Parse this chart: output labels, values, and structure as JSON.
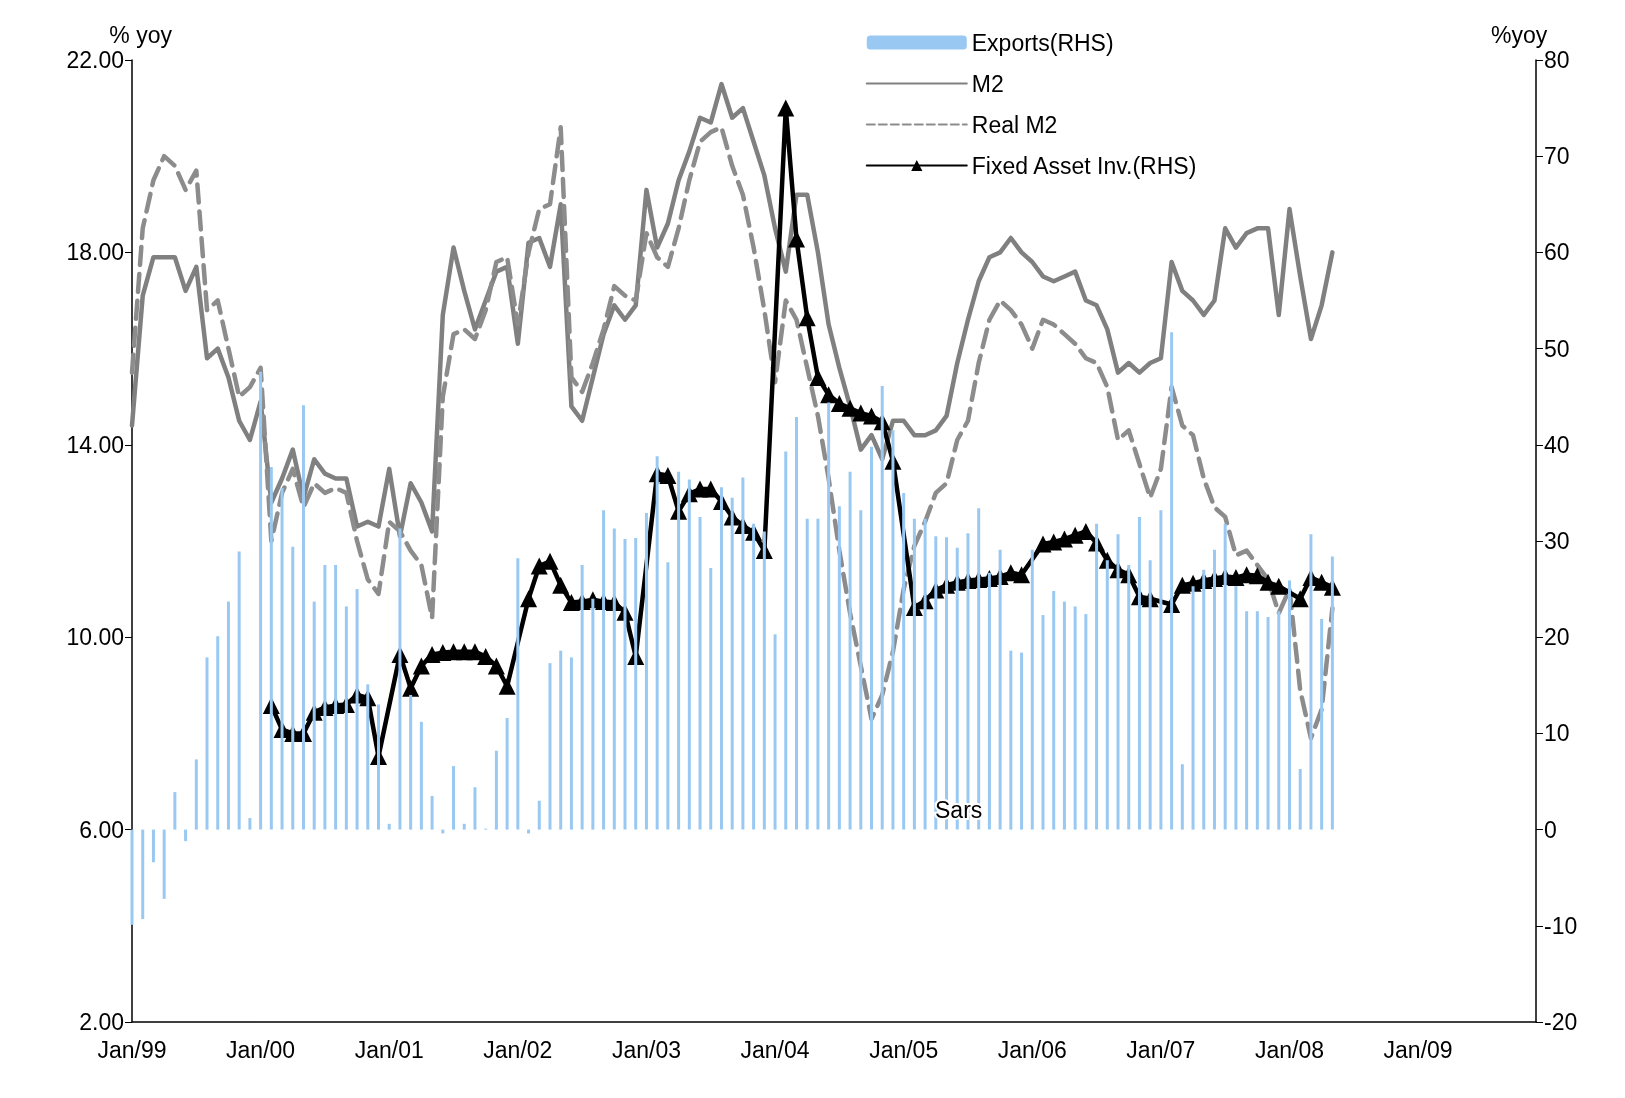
{
  "chart_data": {
    "type": "line",
    "categories": [
      "Jan/99",
      null,
      null,
      null,
      null,
      null,
      null,
      null,
      null,
      null,
      null,
      null,
      "Jan/00",
      null,
      null,
      null,
      null,
      null,
      null,
      null,
      null,
      null,
      null,
      null,
      "Jan/01",
      null,
      null,
      null,
      null,
      null,
      null,
      null,
      null,
      null,
      null,
      null,
      "Jan/02",
      null,
      null,
      null,
      null,
      null,
      null,
      null,
      null,
      null,
      null,
      null,
      "Jan/03",
      null,
      null,
      null,
      null,
      null,
      null,
      null,
      null,
      null,
      null,
      null,
      "Jan/04",
      null,
      null,
      null,
      null,
      null,
      null,
      null,
      null,
      null,
      null,
      null,
      "Jan/05",
      null,
      null,
      null,
      null,
      null,
      null,
      null,
      null,
      null,
      null,
      null,
      "Jan/06",
      null,
      null,
      null,
      null,
      null,
      null,
      null,
      null,
      null,
      null,
      null,
      "Jan/07",
      null,
      null,
      null,
      null,
      null,
      null,
      null,
      null,
      null,
      null,
      null,
      "Jan/08",
      null,
      null,
      null,
      null,
      null,
      null,
      null,
      null,
      null,
      null,
      null,
      "Jan/09",
      null,
      null,
      null,
      null,
      null,
      null,
      null,
      null,
      null,
      null,
      null
    ],
    "ylabel": "% yoy",
    "y2label": "%yoy",
    "ylim": [
      2,
      22
    ],
    "yticks": [
      {
        "value": 2,
        "label": "2.00"
      },
      {
        "value": 6,
        "label": "6.00"
      },
      {
        "value": 10,
        "label": "10.00"
      },
      {
        "value": 14,
        "label": "14.00"
      },
      {
        "value": 18,
        "label": "18.00"
      },
      {
        "value": 22,
        "label": "22.00"
      }
    ],
    "y2lim": [
      -20,
      80
    ],
    "y2ticks": [
      -20,
      -10,
      0,
      10,
      20,
      30,
      40,
      50,
      60,
      70,
      80
    ],
    "legend": "top",
    "annotations": [
      "Sars"
    ],
    "series": [
      {
        "name": "Exports(RHS)",
        "type": "bar",
        "axis": "y2",
        "color": "#99c9f2",
        "values": [
          -9.9,
          -9.3,
          -3.4,
          -7.2,
          3.9,
          -1.2,
          7.3,
          17.9,
          20.1,
          23.7,
          28.9,
          1.2,
          47.6,
          37.7,
          35.5,
          29.4,
          44.1,
          23.7,
          27.5,
          27.5,
          23.2,
          25.0,
          15.1,
          13.0,
          0.6,
          31.3,
          14.0,
          11.2,
          3.5,
          -0.4,
          6.6,
          0.6,
          4.4,
          0.1,
          8.2,
          11.6,
          28.2,
          -0.4,
          3.0,
          17.3,
          18.6,
          17.9,
          27.5,
          24.0,
          33.2,
          31.3,
          30.2,
          30.3,
          32.9,
          38.8,
          27.8,
          37.2,
          36.4,
          32.5,
          27.2,
          35.6,
          34.5,
          36.6,
          31.8,
          31.0,
          20.3,
          39.3,
          42.9,
          32.3,
          32.3,
          44.4,
          33.6,
          37.2,
          33.2,
          39.8,
          46.1,
          41.5,
          35.0,
          32.3,
          32.3,
          30.5,
          30.4,
          29.3,
          30.8,
          33.4,
          26.7,
          29.1,
          18.6,
          18.4,
          29.1,
          22.3,
          24.8,
          23.7,
          23.2,
          22.4,
          31.8,
          28.0,
          30.7,
          27.5,
          32.5,
          28.0,
          33.2,
          51.7,
          6.8,
          25.3,
          27.0,
          29.1,
          31.8,
          25.3,
          22.7,
          22.7,
          22.1,
          22.7,
          25.9,
          6.3,
          30.7,
          21.9,
          28.4,
          null,
          null,
          null,
          null,
          null,
          null,
          null,
          null,
          null,
          null,
          null,
          null,
          null,
          null,
          null,
          null,
          null,
          null,
          null
        ]
      },
      {
        "name": "M2",
        "color": "#808080",
        "line_style": "solid",
        "marker": "none",
        "values": [
          14.4,
          17.1,
          17.9,
          17.9,
          17.9,
          17.2,
          17.7,
          15.8,
          16.0,
          15.4,
          14.5,
          14.1,
          14.9,
          12.8,
          13.3,
          13.9,
          12.9,
          13.7,
          13.4,
          13.3,
          13.3,
          12.3,
          12.4,
          12.3,
          13.5,
          12.1,
          13.2,
          12.8,
          12.2,
          16.7,
          18.1,
          17.2,
          16.4,
          17.0,
          17.6,
          17.7,
          16.1,
          18.2,
          18.3,
          17.7,
          19.0,
          14.8,
          14.5,
          15.4,
          16.3,
          16.9,
          16.6,
          16.9,
          19.3,
          18.1,
          18.6,
          19.5,
          20.1,
          20.8,
          20.7,
          21.5,
          20.8,
          21.0,
          20.3,
          19.6,
          18.5,
          17.6,
          19.2,
          19.2,
          18.0,
          16.5,
          15.6,
          14.8,
          13.9,
          14.2,
          13.7,
          14.5,
          14.5,
          14.2,
          14.2,
          14.3,
          14.6,
          15.7,
          16.6,
          17.4,
          17.9,
          18.0,
          18.3,
          18.0,
          17.8,
          17.5,
          17.4,
          17.5,
          17.6,
          17.0,
          16.9,
          16.4,
          15.5,
          15.7,
          15.5,
          15.7,
          15.8,
          17.8,
          17.2,
          17.0,
          16.7,
          17.0,
          18.5,
          18.1,
          18.4,
          18.5,
          18.5,
          16.7,
          18.9,
          17.5,
          16.2,
          16.9,
          18.0,
          null,
          null,
          null,
          null,
          null,
          null,
          null,
          null,
          null,
          null,
          null,
          null,
          null,
          null,
          null,
          null,
          null,
          null,
          null
        ]
      },
      {
        "name": "Real M2",
        "color": "#8c8c8c",
        "line_style": "dashed",
        "marker": "none",
        "values": [
          15.5,
          18.5,
          19.5,
          20.0,
          19.8,
          19.3,
          19.7,
          16.8,
          17.0,
          16.0,
          15.0,
          15.2,
          15.6,
          12.0,
          13.0,
          13.5,
          12.7,
          13.2,
          13.0,
          13.1,
          13.0,
          12.0,
          11.2,
          10.9,
          12.4,
          12.2,
          11.8,
          11.5,
          10.4,
          15.0,
          16.3,
          16.4,
          16.2,
          16.8,
          17.8,
          17.9,
          16.5,
          18.0,
          18.9,
          19.0,
          20.6,
          15.4,
          15.1,
          15.7,
          16.4,
          17.3,
          17.1,
          17.0,
          18.4,
          17.9,
          17.7,
          18.5,
          19.5,
          20.3,
          20.5,
          20.6,
          19.8,
          19.2,
          18.1,
          16.8,
          15.3,
          17.0,
          16.6,
          15.6,
          14.6,
          13.3,
          11.8,
          10.5,
          9.4,
          8.3,
          8.8,
          9.7,
          11.0,
          11.9,
          12.4,
          13.0,
          13.2,
          14.1,
          14.5,
          15.7,
          16.6,
          17.0,
          16.8,
          16.5,
          16.0,
          16.6,
          16.5,
          16.3,
          16.1,
          15.8,
          15.7,
          15.2,
          14.1,
          14.3,
          13.6,
          12.9,
          13.5,
          15.2,
          14.4,
          14.2,
          13.3,
          12.7,
          12.5,
          11.7,
          11.8,
          11.5,
          11.2,
          10.5,
          11.0,
          8.9,
          7.9,
          8.5,
          10.6,
          null,
          null,
          null,
          null,
          null,
          null,
          null,
          null,
          null,
          null,
          null,
          null,
          null,
          null,
          null,
          null,
          null,
          null,
          null
        ]
      },
      {
        "name": "Fixed Asset Inv.(RHS)",
        "type": "line",
        "axis": "y2",
        "color": "#000000",
        "line_style": "solid",
        "marker": "triangle",
        "values": [
          null,
          null,
          null,
          null,
          null,
          null,
          null,
          null,
          null,
          null,
          null,
          null,
          null,
          12.9,
          10.4,
          10.0,
          10.0,
          12.2,
          12.7,
          12.9,
          13.0,
          14.0,
          13.7,
          7.6,
          null,
          18.2,
          14.7,
          17.0,
          18.2,
          18.4,
          18.5,
          18.5,
          18.5,
          18.0,
          17.0,
          14.9,
          null,
          24.0,
          27.4,
          27.9,
          25.4,
          23.6,
          23.7,
          23.9,
          23.7,
          23.6,
          22.6,
          18.0,
          null,
          37.0,
          36.8,
          33.1,
          34.9,
          35.4,
          35.4,
          34.1,
          32.5,
          31.6,
          30.9,
          29.0,
          null,
          75.0,
          61.4,
          53.2,
          47.0,
          45.2,
          44.3,
          43.8,
          43.3,
          43.0,
          42.4,
          38.3,
          null,
          23.1,
          23.8,
          24.9,
          25.4,
          25.7,
          25.9,
          26.0,
          26.1,
          26.3,
          26.7,
          26.5,
          null,
          29.7,
          29.9,
          30.2,
          30.6,
          31.0,
          29.8,
          28.0,
          27.0,
          26.5,
          24.2,
          24.0,
          null,
          23.4,
          25.4,
          25.6,
          25.9,
          26.1,
          26.3,
          26.2,
          26.5,
          26.4,
          25.7,
          25.3,
          null,
          24.0,
          26.2,
          25.7,
          25.2,
          null,
          null,
          null,
          null,
          null,
          null,
          null,
          null,
          null,
          null,
          null,
          null,
          null,
          null,
          null,
          null,
          null,
          null,
          null
        ]
      }
    ]
  }
}
